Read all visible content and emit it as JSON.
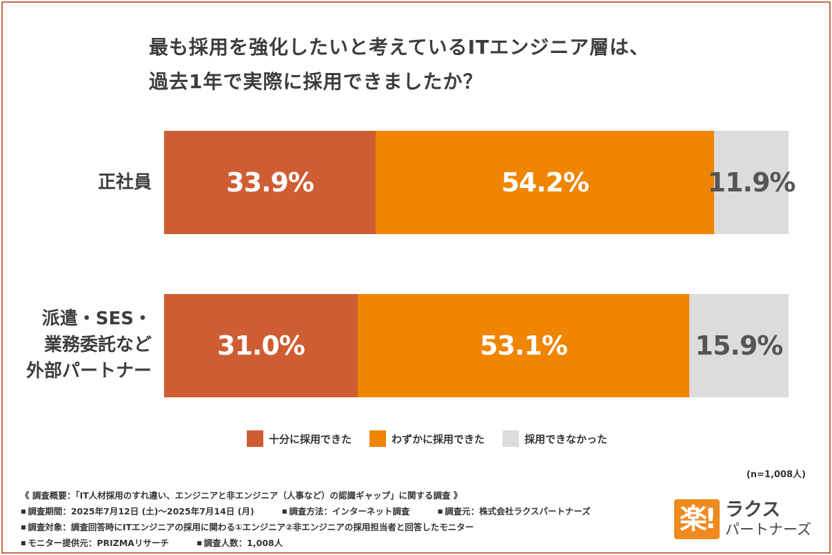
{
  "title_lines": [
    "最も採用を強化したいと考えているITエンジニア層は、",
    "過去1年で実際に採用できましたか？"
  ],
  "chart_data": {
    "type": "bar",
    "orientation": "horizontal",
    "stacked": true,
    "categories": [
      "正社員",
      "派遣・SES・業務委託など外部パートナー"
    ],
    "category_label_lines": [
      [
        "正社員"
      ],
      [
        "派遣・SES・",
        "業務委託など",
        "外部パートナー"
      ]
    ],
    "series": [
      {
        "name": "十分に採用できた",
        "values": [
          33.9,
          31.0
        ],
        "labels": [
          "33.9%",
          "31.0%"
        ],
        "color": "#cf5d33",
        "text_color": "#ffffff"
      },
      {
        "name": "わずかに採用できた",
        "values": [
          54.2,
          53.1
        ],
        "labels": [
          "54.2%",
          "53.1%"
        ],
        "color": "#ef8500",
        "text_color": "#ffffff"
      },
      {
        "name": "採用できなかった",
        "values": [
          11.9,
          15.9
        ],
        "labels": [
          "11.9%",
          "15.9%"
        ],
        "color": "#dcdcdc",
        "text_color": "#555555"
      }
    ],
    "xlim": [
      0,
      100
    ],
    "legend_position": "bottom",
    "grid": false
  },
  "sample_note": "(n=1,008人)",
  "notes": {
    "overview": "《 調査概要：「IT人材採用のすれ違い、エンジニアと非エンジニア（人事など）の認識ギャップ」に関する調査 》",
    "period": "調査期間：2025年7月12日 (土)～2025年7月14日 (月)",
    "method": "調査方法：インターネット調査",
    "source": "調査元：株式会社ラクスパートナーズ",
    "target": "調査対象：調査回答時にITエンジニアの採用に関わる①エンジニア②非エンジニアの採用担当者と回答したモニター",
    "provider": "モニター提供元：PRIZMAリサーチ",
    "count": "調査人数：1,008人"
  },
  "logo": {
    "mark": "楽!",
    "line1": "ラクス",
    "line2": "パートナーズ"
  }
}
